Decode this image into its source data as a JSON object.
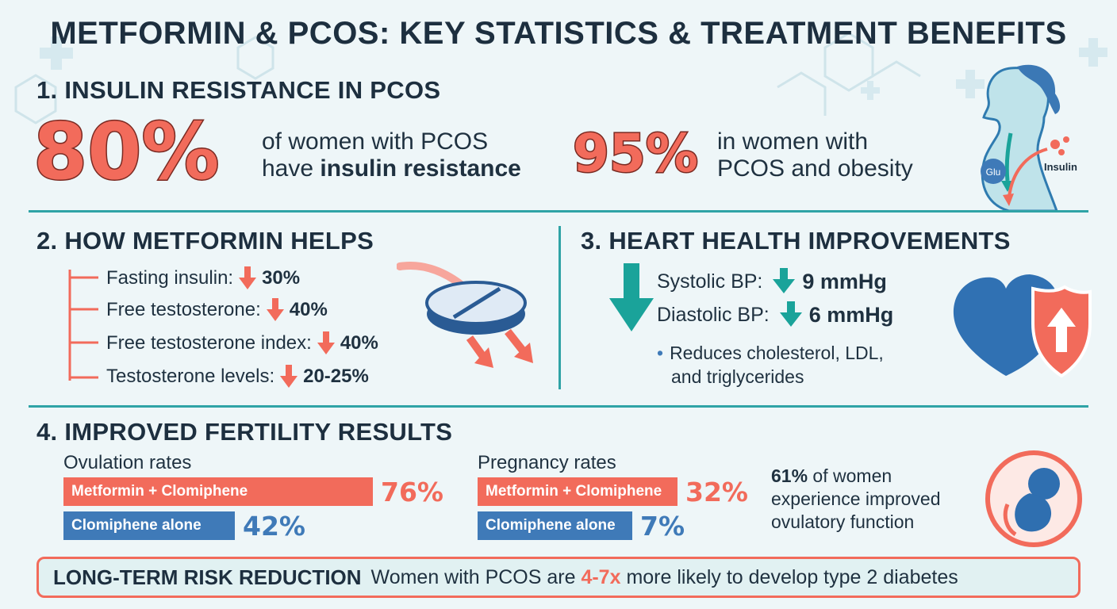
{
  "title": "METFORMIN & PCOS: KEY STATISTICS & TREATMENT BENEFITS",
  "section1": {
    "heading": "1. INSULIN RESISTANCE IN PCOS",
    "stat1": {
      "value": "80%",
      "line1": "of women with PCOS",
      "line2_plain": "have ",
      "line2_bold": "insulin resistance"
    },
    "stat2": {
      "value": "95%",
      "line1": "in women with",
      "line2": "PCOS and obesity"
    },
    "illustration": {
      "glucose_label": "Glu",
      "insulin_label": "Insulin"
    }
  },
  "section2": {
    "heading": "2. HOW METFORMIN HELPS",
    "items": [
      {
        "label": "Fasting insulin:",
        "value": "30%"
      },
      {
        "label": "Free testosterone:",
        "value": "40%"
      },
      {
        "label": "Free testosterone index:",
        "value": "40%"
      },
      {
        "label": "Testosterone levels:",
        "value": "20-25%"
      }
    ]
  },
  "section3": {
    "heading": "3. HEART HEALTH IMPROVEMENTS",
    "systolic": {
      "label": "Systolic BP:",
      "value": "9 mmHg"
    },
    "diastolic": {
      "label": "Diastolic BP:",
      "value": "6 mmHg"
    },
    "bullet_line1": "Reduces cholesterol, LDL,",
    "bullet_line2": "and triglycerides"
  },
  "section4": {
    "heading": "4. IMPROVED FERTILITY RESULTS",
    "ovulation": {
      "title": "Ovulation rates",
      "bars": [
        {
          "label": "Metformin + Clomiphene",
          "value": "76%",
          "fraction": 0.76
        },
        {
          "label": "Clomiphene alone",
          "value": "42%",
          "fraction": 0.42
        }
      ]
    },
    "pregnancy": {
      "title": "Pregnancy rates",
      "bars": [
        {
          "label": "Metformin + Clomiphene",
          "value": "32%",
          "fraction": 0.32
        },
        {
          "label": "Clomiphene alone",
          "value": "7%",
          "fraction": 0.07
        }
      ]
    },
    "callout": {
      "value": "61%",
      "line1_rest": " of women",
      "line2": "experience improved",
      "line3": "ovulatory function"
    }
  },
  "long_term": {
    "heading": "LONG-TERM RISK REDUCTION",
    "text_before": "Women with PCOS are ",
    "highlight": "4-7x",
    "text_after": " more likely to develop type 2 diabetes"
  },
  "colors": {
    "coral": "#f26b5b",
    "teal": "#1aa39a",
    "blue": "#3f7ab8",
    "navy": "#1d2f3f"
  }
}
